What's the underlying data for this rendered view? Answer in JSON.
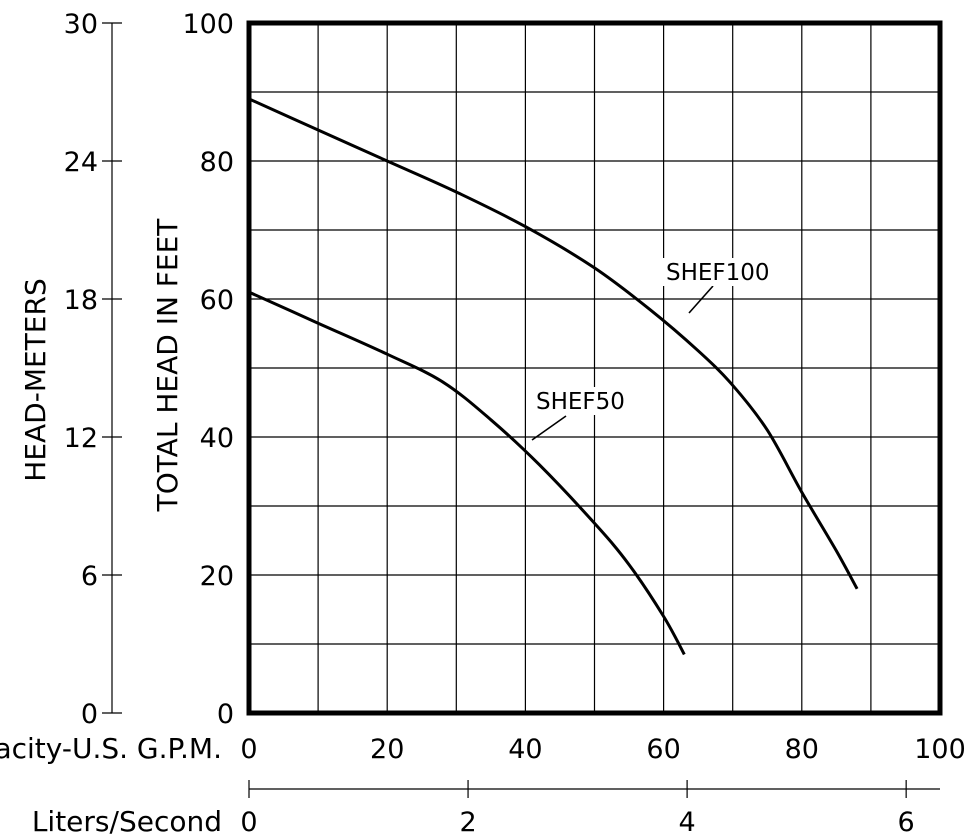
{
  "chart_data": {
    "type": "line",
    "xlabel": "Capacity-U.S. G.P.M.",
    "x2label": "Liters/Second",
    "ylabel": "TOTAL HEAD IN FEET",
    "y2label": "HEAD-METERS",
    "xlim": [
      0,
      100
    ],
    "ylim": [
      0,
      100
    ],
    "x_ticks": [
      "0",
      "20",
      "40",
      "60",
      "80",
      "100"
    ],
    "y_ticks": [
      "0",
      "20",
      "40",
      "60",
      "80",
      "100"
    ],
    "x2_ticks": [
      "0",
      "2",
      "4",
      "6"
    ],
    "y2_ticks": [
      "0",
      "6",
      "12",
      "18",
      "24",
      "30"
    ],
    "grid": true,
    "series": [
      {
        "name": "SHEF100",
        "x": [
          0,
          10,
          20,
          30,
          40,
          50,
          58,
          65,
          70,
          75,
          80,
          85,
          88
        ],
        "y": [
          89,
          84.5,
          80,
          75.5,
          70.5,
          64.5,
          58.5,
          52.5,
          47.5,
          41,
          32,
          23.5,
          18
        ]
      },
      {
        "name": "SHEF50",
        "x": [
          0,
          10,
          20,
          28,
          35,
          42,
          50,
          55,
          60,
          63
        ],
        "y": [
          61,
          56.5,
          52,
          48,
          42.5,
          36,
          27.5,
          21.5,
          14,
          8.5
        ]
      }
    ]
  }
}
